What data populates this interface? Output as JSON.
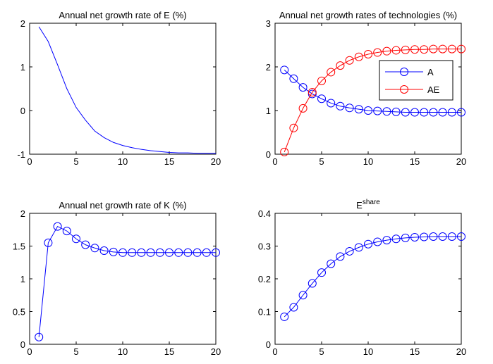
{
  "chart_data": [
    {
      "type": "line",
      "title": "Annual net growth rate of E (%)",
      "xlim": [
        0,
        20
      ],
      "ylim": [
        -1,
        2
      ],
      "xticks": [
        0,
        5,
        10,
        15,
        20
      ],
      "yticks": [
        -1,
        0,
        1,
        2
      ],
      "markers": false,
      "grid": false,
      "series": [
        {
          "color": "#0000ff",
          "x": [
            1,
            2,
            3,
            4,
            5,
            6,
            7,
            8,
            9,
            10,
            11,
            12,
            13,
            14,
            15,
            16,
            17,
            18,
            19,
            20
          ],
          "y": [
            1.92,
            1.58,
            1.05,
            0.5,
            0.07,
            -0.22,
            -0.47,
            -0.62,
            -0.73,
            -0.8,
            -0.85,
            -0.89,
            -0.92,
            -0.94,
            -0.96,
            -0.97,
            -0.97,
            -0.98,
            -0.98,
            -0.98
          ]
        }
      ]
    },
    {
      "type": "line",
      "title": "Annual net growth rates of technologies (%)",
      "xlim": [
        0,
        20
      ],
      "ylim": [
        0,
        3
      ],
      "xticks": [
        0,
        5,
        10,
        15,
        20
      ],
      "yticks": [
        0,
        1,
        2,
        3
      ],
      "markers": true,
      "grid": false,
      "legend": "upper-right",
      "series": [
        {
          "name": "A",
          "color": "#0000ff",
          "x": [
            1,
            2,
            3,
            4,
            5,
            6,
            7,
            8,
            9,
            10,
            11,
            12,
            13,
            14,
            15,
            16,
            17,
            18,
            19,
            20
          ],
          "y": [
            1.93,
            1.73,
            1.53,
            1.38,
            1.27,
            1.17,
            1.1,
            1.06,
            1.03,
            1.0,
            0.99,
            0.98,
            0.97,
            0.96,
            0.96,
            0.96,
            0.96,
            0.96,
            0.96,
            0.96
          ]
        },
        {
          "name": "AE",
          "color": "#ff0000",
          "x": [
            1,
            2,
            3,
            4,
            5,
            6,
            7,
            8,
            9,
            10,
            11,
            12,
            13,
            14,
            15,
            16,
            17,
            18,
            19,
            20
          ],
          "y": [
            0.05,
            0.6,
            1.05,
            1.42,
            1.68,
            1.88,
            2.03,
            2.15,
            2.23,
            2.29,
            2.33,
            2.36,
            2.38,
            2.39,
            2.4,
            2.4,
            2.41,
            2.41,
            2.41,
            2.41
          ]
        }
      ]
    },
    {
      "type": "line",
      "title": "Annual net growth rate of K (%)",
      "xlim": [
        0,
        20
      ],
      "ylim": [
        0,
        2
      ],
      "xticks": [
        0,
        5,
        10,
        15,
        20
      ],
      "yticks": [
        0,
        0.5,
        1,
        1.5,
        2
      ],
      "markers": true,
      "grid": false,
      "series": [
        {
          "color": "#0000ff",
          "x": [
            1,
            2,
            3,
            4,
            5,
            6,
            7,
            8,
            9,
            10,
            11,
            12,
            13,
            14,
            15,
            16,
            17,
            18,
            19,
            20
          ],
          "y": [
            0.11,
            1.55,
            1.8,
            1.73,
            1.61,
            1.52,
            1.47,
            1.43,
            1.41,
            1.4,
            1.4,
            1.4,
            1.4,
            1.4,
            1.4,
            1.4,
            1.4,
            1.4,
            1.4,
            1.4
          ]
        }
      ]
    },
    {
      "type": "line",
      "title": "E",
      "title_superscript": "share",
      "xlim": [
        0,
        20
      ],
      "ylim": [
        0,
        0.4
      ],
      "xticks": [
        0,
        5,
        10,
        15,
        20
      ],
      "yticks": [
        0,
        0.1,
        0.2,
        0.3,
        0.4
      ],
      "markers": true,
      "grid": false,
      "series": [
        {
          "color": "#0000ff",
          "x": [
            1,
            2,
            3,
            4,
            5,
            6,
            7,
            8,
            9,
            10,
            11,
            12,
            13,
            14,
            15,
            16,
            17,
            18,
            19,
            20
          ],
          "y": [
            0.084,
            0.113,
            0.15,
            0.186,
            0.219,
            0.246,
            0.268,
            0.284,
            0.296,
            0.306,
            0.313,
            0.318,
            0.322,
            0.325,
            0.327,
            0.328,
            0.329,
            0.329,
            0.329,
            0.329
          ]
        }
      ]
    }
  ]
}
